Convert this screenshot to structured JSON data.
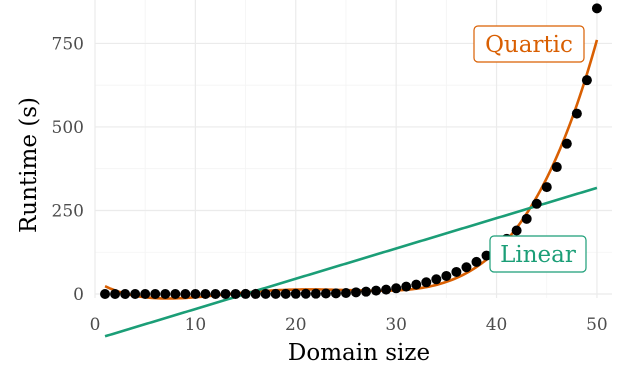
{
  "chart_data": {
    "type": "scatter",
    "xlabel": "Domain size",
    "ylabel": "Runtime (s)",
    "xlim": [
      0,
      51.5
    ],
    "ylim": [
      -12,
      880
    ],
    "x_ticks": [
      0,
      10,
      20,
      30,
      40,
      50
    ],
    "y_ticks": [
      0,
      250,
      500,
      750
    ],
    "grid": true,
    "points": {
      "x": [
        1,
        2,
        3,
        4,
        5,
        6,
        7,
        8,
        9,
        10,
        11,
        12,
        13,
        14,
        15,
        16,
        17,
        18,
        19,
        20,
        21,
        22,
        23,
        24,
        25,
        26,
        27,
        28,
        29,
        30,
        31,
        32,
        33,
        34,
        35,
        36,
        37,
        38,
        39,
        40,
        41,
        42,
        43,
        44,
        45,
        46,
        47,
        48,
        49,
        50
      ],
      "y": [
        0,
        0,
        0,
        0,
        0,
        0,
        0,
        0,
        0,
        0,
        0,
        0,
        0.1,
        0.1,
        0.2,
        0.2,
        0.3,
        0.4,
        0.5,
        0.6,
        0.8,
        1,
        1.5,
        2,
        3,
        5,
        7,
        10,
        13,
        17,
        22,
        28,
        35,
        44,
        54,
        66,
        80,
        96,
        115,
        138,
        165,
        190,
        225,
        270,
        320,
        380,
        450,
        540,
        640,
        855
      ]
    },
    "fits": [
      {
        "label": "Quartic",
        "kind": "quartic",
        "color": "#d95f02"
      },
      {
        "label": "Linear",
        "kind": "linear",
        "color": "#1b9e77"
      }
    ]
  }
}
